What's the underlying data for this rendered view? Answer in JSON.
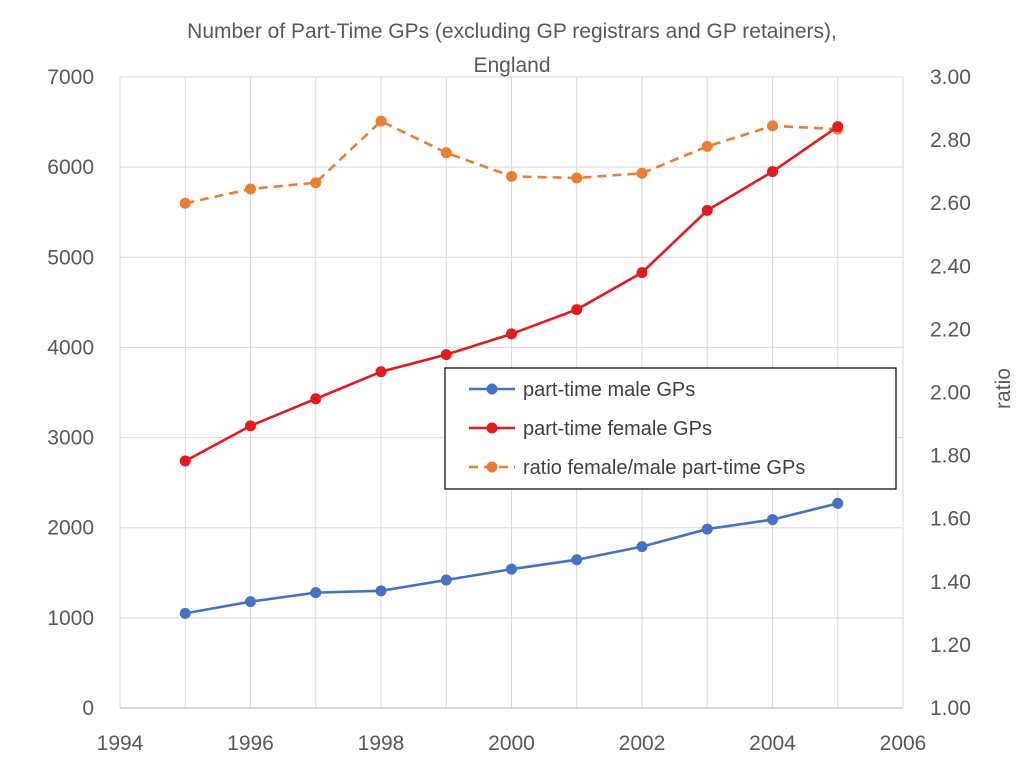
{
  "chart_data": {
    "type": "line",
    "title_line1": "Number of Part-Time GPs (excluding GP registrars and GP retainers),",
    "title_line2": "England",
    "xlabel": "",
    "ylabel": "",
    "y2label": "ratio",
    "xlim": [
      1994,
      2006
    ],
    "xticks": [
      1994,
      1996,
      1998,
      2000,
      2002,
      2004,
      2006
    ],
    "xgrid_every": 1,
    "ylim": [
      0,
      7000
    ],
    "yticks": [
      0,
      1000,
      2000,
      3000,
      4000,
      5000,
      6000,
      7000
    ],
    "y2lim": [
      1.0,
      3.0
    ],
    "y2ticks": [
      "1.00",
      "1.20",
      "1.40",
      "1.60",
      "1.80",
      "2.00",
      "2.20",
      "2.40",
      "2.60",
      "2.80",
      "3.00"
    ],
    "grid": true,
    "legend_position": "center-right",
    "x": [
      1995,
      1996,
      1997,
      1998,
      1999,
      2000,
      2001,
      2002,
      2003,
      2004,
      2005
    ],
    "series": [
      {
        "name": "part-time male GPs",
        "axis": "left",
        "color": "#4472C4",
        "dashed": false,
        "values": [
          1050,
          1180,
          1280,
          1300,
          1420,
          1540,
          1645,
          1790,
          1985,
          2090,
          2270
        ]
      },
      {
        "name": "part-time female GPs",
        "axis": "left",
        "color": "#E41A1C",
        "dashed": false,
        "values": [
          2740,
          3130,
          3430,
          3730,
          3920,
          4150,
          4420,
          4830,
          5520,
          5950,
          6450
        ]
      },
      {
        "name": "ratio female/male part-time GPs",
        "axis": "right",
        "color": "#ED7D31",
        "dashed": true,
        "values": [
          2.6,
          2.645,
          2.665,
          2.86,
          2.76,
          2.685,
          2.68,
          2.695,
          2.78,
          2.845,
          2.835
        ]
      }
    ]
  }
}
